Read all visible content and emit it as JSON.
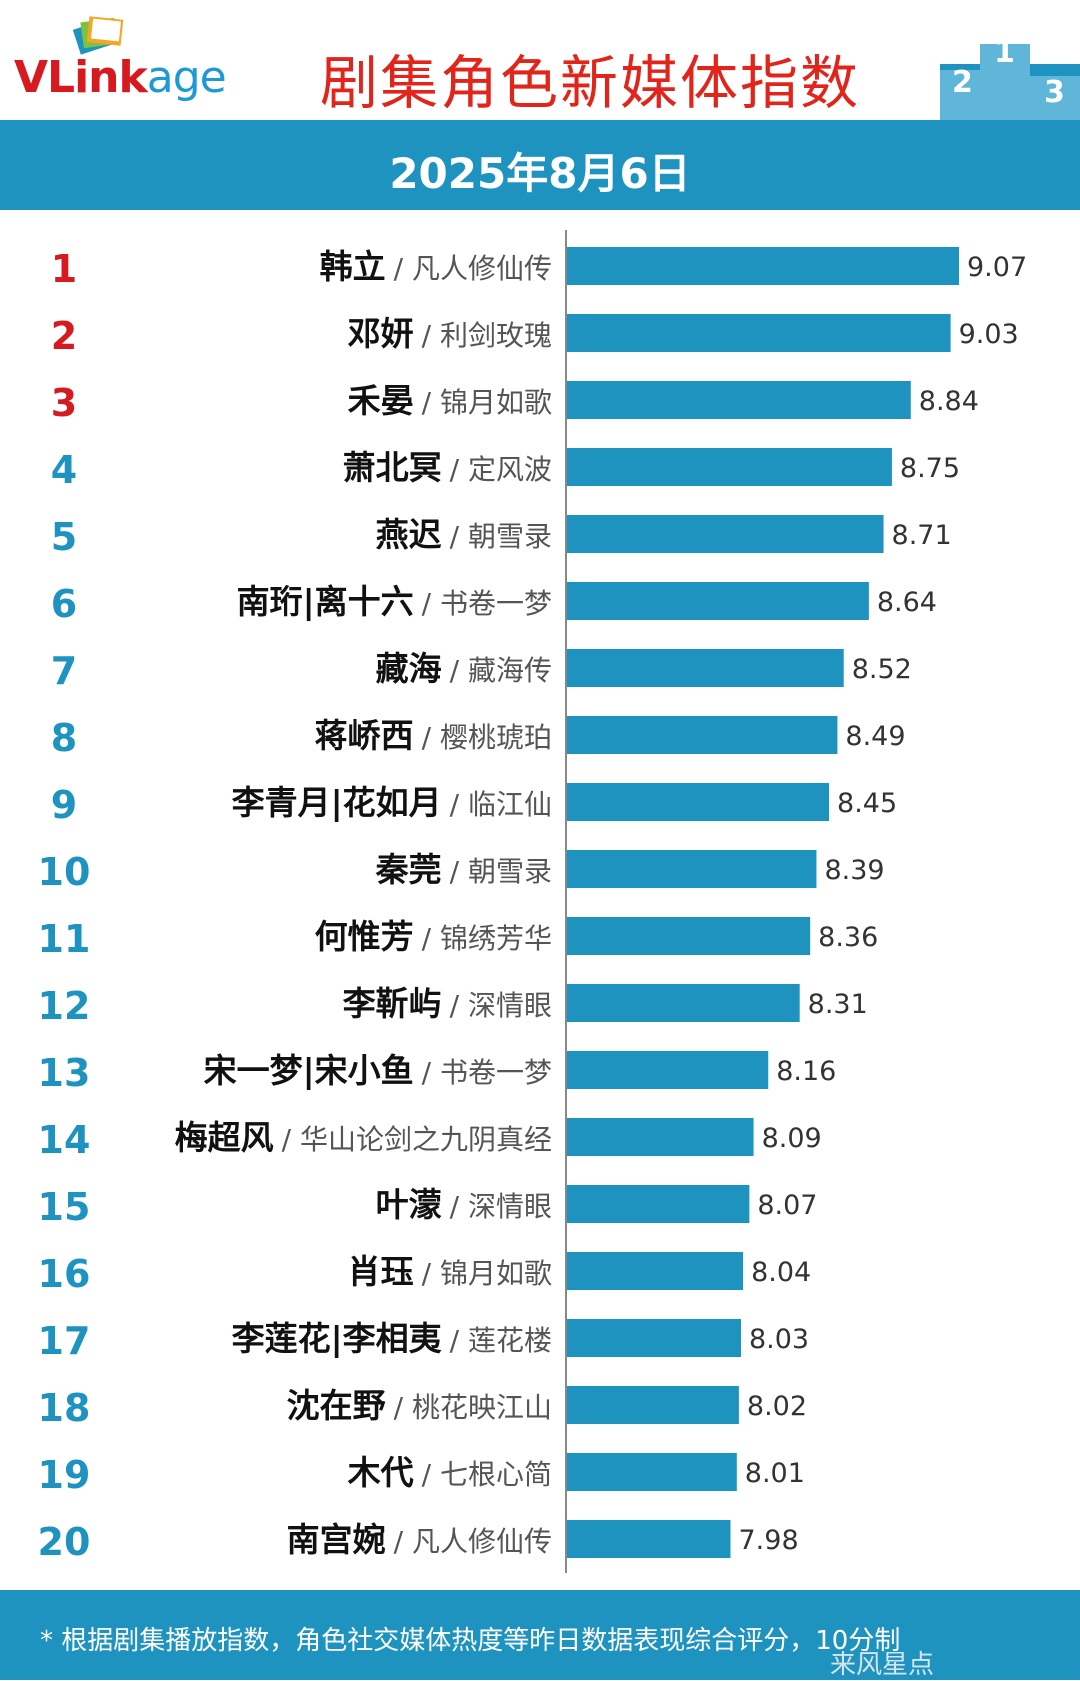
{
  "header": {
    "logo_text_main": "VLink",
    "logo_text_suffix": "age",
    "title": "剧集角色新媒体指数",
    "date": "2025年8月6日"
  },
  "colors": {
    "bar": "#1f93c0",
    "rank_top3": "#d71920",
    "rank_other": "#1f93c0",
    "title": "#e1251b"
  },
  "chart_data": {
    "type": "bar",
    "orientation": "horizontal",
    "title": "剧集角色新媒体指数",
    "xlim": [
      7.2,
      9.3
    ],
    "rows": [
      {
        "rank": "1",
        "name": "韩立",
        "drama": "/ 凡人修仙传",
        "value": 9.07
      },
      {
        "rank": "2",
        "name": "邓妍",
        "drama": "/ 利剑玫瑰",
        "value": 9.03
      },
      {
        "rank": "3",
        "name": "禾晏",
        "drama": "/ 锦月如歌",
        "value": 8.84
      },
      {
        "rank": "4",
        "name": "萧北冥",
        "drama": "/ 定风波",
        "value": 8.75
      },
      {
        "rank": "5",
        "name": "燕迟",
        "drama": "/ 朝雪录",
        "value": 8.71
      },
      {
        "rank": "6",
        "name": "南珩|离十六",
        "drama": "/ 书卷一梦",
        "value": 8.64
      },
      {
        "rank": "7",
        "name": "藏海",
        "drama": "/ 藏海传",
        "value": 8.52
      },
      {
        "rank": "8",
        "name": "蒋峤西",
        "drama": "/ 樱桃琥珀",
        "value": 8.49
      },
      {
        "rank": "9",
        "name": "李青月|花如月",
        "drama": "/ 临江仙",
        "value": 8.45
      },
      {
        "rank": "10",
        "name": "秦莞",
        "drama": "/ 朝雪录",
        "value": 8.39
      },
      {
        "rank": "11",
        "name": "何惟芳",
        "drama": "/ 锦绣芳华",
        "value": 8.36
      },
      {
        "rank": "12",
        "name": "李靳屿",
        "drama": "/ 深情眼",
        "value": 8.31
      },
      {
        "rank": "13",
        "name": "宋一梦|宋小鱼",
        "drama": "/ 书卷一梦",
        "value": 8.16
      },
      {
        "rank": "14",
        "name": "梅超风",
        "drama": "/ 华山论剑之九阴真经",
        "value": 8.09
      },
      {
        "rank": "15",
        "name": "叶濛",
        "drama": "/ 深情眼",
        "value": 8.07
      },
      {
        "rank": "16",
        "name": "肖珏",
        "drama": "/ 锦月如歌",
        "value": 8.04
      },
      {
        "rank": "17",
        "name": "李莲花|李相夷",
        "drama": "/ 莲花楼",
        "value": 8.03
      },
      {
        "rank": "18",
        "name": "沈在野",
        "drama": "/ 桃花映江山",
        "value": 8.02
      },
      {
        "rank": "19",
        "name": "木代",
        "drama": "/ 七根心简",
        "value": 8.01
      },
      {
        "rank": "20",
        "name": "南宫婉",
        "drama": "/ 凡人修仙传",
        "value": 7.98
      }
    ]
  },
  "footer": {
    "note": "* 根据剧集播放指数，角色社交媒体热度等昨日数据表现综合评分，10分制",
    "watermark": "来风星点"
  }
}
